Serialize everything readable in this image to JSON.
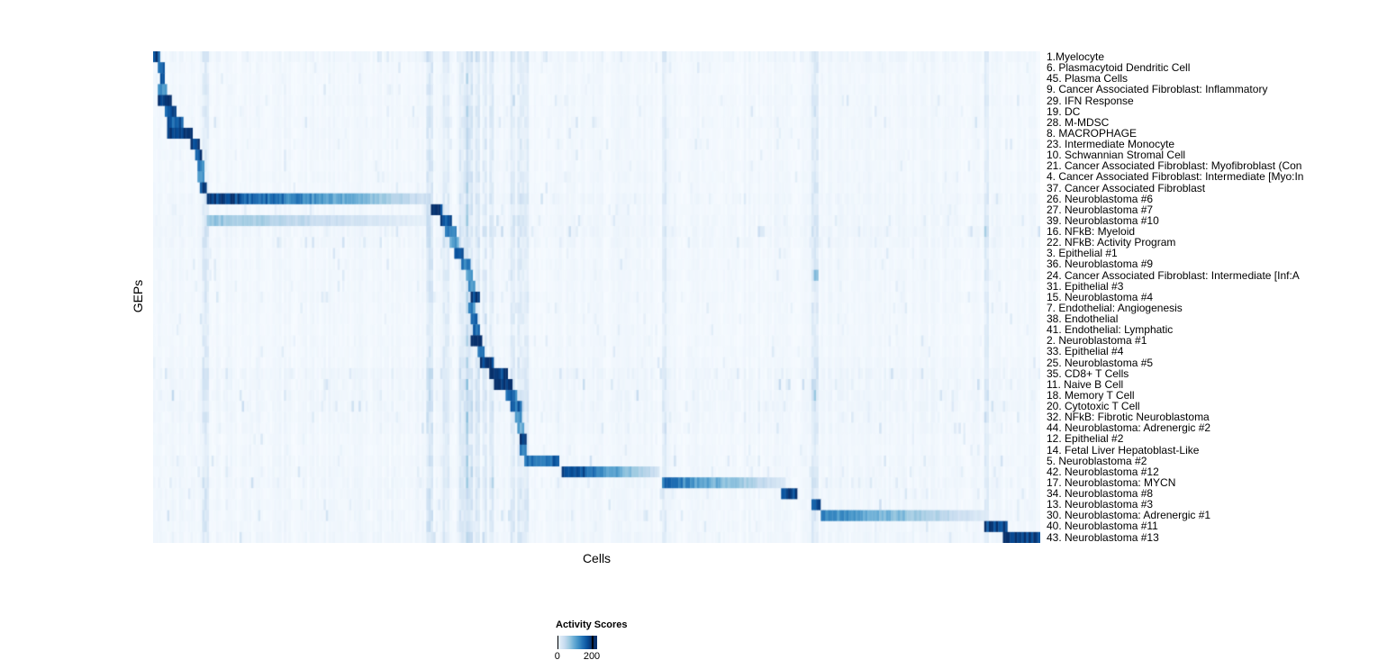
{
  "chart_data": {
    "type": "heatmap",
    "title": "",
    "xlabel": "Cells",
    "ylabel": "GEPs",
    "value_range": [
      0,
      200
    ],
    "colormap": {
      "name": "Blues",
      "stops": [
        "#f7fbff",
        "#deebf7",
        "#c6dbef",
        "#9ecae1",
        "#6baed6",
        "#4292c6",
        "#2171b5",
        "#08519c",
        "#08306b"
      ]
    },
    "colorbar": {
      "title": "Activity Scores",
      "tick_labels": [
        "0",
        "200"
      ],
      "tick_positions": [
        0.04,
        0.87
      ]
    },
    "n_columns": 380,
    "rows": [
      {
        "label": "1.Myelocyte",
        "noise": 0.5,
        "segments": [
          [
            0.0,
            0.009,
            190,
            0
          ]
        ]
      },
      {
        "label": "6. Plasmacytoid Dendritic Cell",
        "noise": 0.3,
        "segments": [
          [
            0.004,
            0.012,
            175,
            0
          ]
        ]
      },
      {
        "label": "45. Plasma Cells",
        "noise": 0.25,
        "segments": [
          [
            0.007,
            0.013,
            160,
            0
          ]
        ]
      },
      {
        "label": "9. Cancer Associated Fibroblast: Inflammatory",
        "noise": 0.3,
        "segments": [
          [
            0.005,
            0.016,
            120,
            0
          ]
        ]
      },
      {
        "label": "29. IFN Response",
        "noise": 0.35,
        "segments": [
          [
            0.006,
            0.021,
            195,
            0
          ]
        ]
      },
      {
        "label": "19. DC",
        "noise": 0.3,
        "segments": [
          [
            0.013,
            0.026,
            180,
            0
          ]
        ]
      },
      {
        "label": "28. M-MDSC",
        "noise": 0.35,
        "segments": [
          [
            0.016,
            0.033,
            175,
            0
          ]
        ]
      },
      {
        "label": "8. MACROPHAGE",
        "noise": 0.3,
        "segments": [
          [
            0.015,
            0.044,
            205,
            0
          ]
        ]
      },
      {
        "label": "23. Intermediate Monocyte",
        "noise": 0.3,
        "segments": [
          [
            0.042,
            0.052,
            195,
            0
          ]
        ]
      },
      {
        "label": "10. Schwannian Stromal Cell",
        "noise": 0.3,
        "segments": [
          [
            0.048,
            0.055,
            185,
            0
          ]
        ]
      },
      {
        "label": "21. Cancer Associated Fibroblast: Myofibroblast (Con",
        "noise": 0.3,
        "segments": [
          [
            0.05,
            0.058,
            140,
            0
          ]
        ]
      },
      {
        "label": "4. Cancer Associated Fibroblast: Intermediate [Myo:In",
        "noise": 0.35,
        "segments": [
          [
            0.051,
            0.059,
            130,
            0
          ]
        ]
      },
      {
        "label": "37. Cancer Associated Fibroblast",
        "noise": 0.3,
        "segments": [
          [
            0.052,
            0.061,
            190,
            0
          ]
        ]
      },
      {
        "label": "26. Neuroblastoma #6",
        "noise": 0.45,
        "segments": [
          [
            0.06,
            0.315,
            205,
            1
          ]
        ]
      },
      {
        "label": "27. Neuroblastoma #7",
        "noise": 0.35,
        "segments": [
          [
            0.312,
            0.327,
            205,
            0
          ]
        ]
      },
      {
        "label": "39. Neuroblastoma #10",
        "noise": 0.45,
        "segments": [
          [
            0.06,
            0.315,
            85,
            1
          ],
          [
            0.324,
            0.337,
            190,
            0
          ]
        ]
      },
      {
        "label": "16. NFkB: Myeloid",
        "noise": 0.5,
        "segments": [
          [
            0.329,
            0.341,
            150,
            0
          ]
        ]
      },
      {
        "label": "22. NFkB: Activity Program",
        "noise": 0.45,
        "segments": [
          [
            0.333,
            0.345,
            120,
            0
          ]
        ]
      },
      {
        "label": "3. Epithelial #1",
        "noise": 0.3,
        "segments": [
          [
            0.34,
            0.351,
            190,
            0
          ]
        ]
      },
      {
        "label": "36. Neuroblastoma #9",
        "noise": 0.35,
        "segments": [
          [
            0.347,
            0.357,
            140,
            0
          ]
        ]
      },
      {
        "label": "24. Cancer Associated Fibroblast: Intermediate [Inf:A",
        "noise": 0.35,
        "segments": [
          [
            0.352,
            0.36,
            110,
            0
          ],
          [
            0.744,
            0.751,
            90,
            0
          ]
        ]
      },
      {
        "label": "31. Epithelial #3",
        "noise": 0.3,
        "segments": [
          [
            0.354,
            0.362,
            130,
            0
          ]
        ]
      },
      {
        "label": "15. Neuroblastoma #4",
        "noise": 0.35,
        "segments": [
          [
            0.357,
            0.369,
            205,
            0
          ]
        ]
      },
      {
        "label": "7. Endothelial: Angiogenesis",
        "noise": 0.3,
        "segments": [
          [
            0.355,
            0.363,
            140,
            0
          ]
        ]
      },
      {
        "label": "38. Endothelial",
        "noise": 0.3,
        "segments": [
          [
            0.358,
            0.366,
            180,
            0
          ]
        ]
      },
      {
        "label": "41. Endothelial: Lymphatic",
        "noise": 0.25,
        "segments": [
          [
            0.361,
            0.368,
            155,
            0
          ]
        ]
      },
      {
        "label": "2. Neuroblastoma #1",
        "noise": 0.3,
        "segments": [
          [
            0.357,
            0.37,
            205,
            0
          ]
        ]
      },
      {
        "label": "33. Epithelial #4",
        "noise": 0.3,
        "segments": [
          [
            0.366,
            0.374,
            150,
            0
          ]
        ]
      },
      {
        "label": "25. Neuroblastoma #5",
        "noise": 0.35,
        "segments": [
          [
            0.369,
            0.384,
            205,
            0
          ]
        ]
      },
      {
        "label": "35. CD8+ T Cells",
        "noise": 0.55,
        "segments": [
          [
            0.379,
            0.399,
            205,
            0
          ]
        ]
      },
      {
        "label": "11. Naive B Cell",
        "noise": 0.5,
        "segments": [
          [
            0.384,
            0.406,
            205,
            0
          ]
        ]
      },
      {
        "label": "18. Memory T Cell",
        "noise": 0.5,
        "segments": [
          [
            0.397,
            0.41,
            150,
            0
          ]
        ]
      },
      {
        "label": "20. Cytotoxic T Cell",
        "noise": 0.5,
        "segments": [
          [
            0.403,
            0.415,
            160,
            0
          ]
        ]
      },
      {
        "label": "32. NFkB: Fibrotic Neuroblastoma",
        "noise": 0.45,
        "segments": [
          [
            0.407,
            0.417,
            140,
            0
          ]
        ]
      },
      {
        "label": "44. Neuroblastoma: Adrenergic #2",
        "noise": 0.4,
        "segments": [
          [
            0.41,
            0.418,
            110,
            0
          ]
        ]
      },
      {
        "label": "12. Epithelial #2",
        "noise": 0.3,
        "segments": [
          [
            0.412,
            0.42,
            185,
            0
          ]
        ]
      },
      {
        "label": "14. Fetal Liver Hepatoblast-Like",
        "noise": 0.3,
        "segments": [
          [
            0.414,
            0.421,
            140,
            0
          ]
        ]
      },
      {
        "label": "5. Neuroblastoma #2",
        "noise": 0.4,
        "segments": [
          [
            0.418,
            0.459,
            160,
            0
          ]
        ]
      },
      {
        "label": "42. Neuroblastoma #12",
        "noise": 0.4,
        "segments": [
          [
            0.461,
            0.57,
            205,
            1
          ]
        ]
      },
      {
        "label": "17. Neuroblastoma: MYCN",
        "noise": 0.45,
        "segments": [
          [
            0.575,
            0.713,
            155,
            1
          ]
        ]
      },
      {
        "label": "34. Neuroblastoma #8",
        "noise": 0.4,
        "segments": [
          [
            0.709,
            0.727,
            190,
            0
          ]
        ]
      },
      {
        "label": "13. Neuroblastoma #3",
        "noise": 0.4,
        "segments": [
          [
            0.743,
            0.753,
            185,
            0
          ]
        ]
      },
      {
        "label": "30. Neuroblastoma: Adrenergic #1",
        "noise": 0.45,
        "segments": [
          [
            0.753,
            0.941,
            145,
            1
          ]
        ]
      },
      {
        "label": "40. Neuroblastoma #11",
        "noise": 0.4,
        "segments": [
          [
            0.937,
            0.963,
            190,
            0
          ]
        ]
      },
      {
        "label": "43. Neuroblastoma #13",
        "noise": 0.45,
        "segments": [
          [
            0.959,
            1.0,
            205,
            0
          ]
        ]
      }
    ],
    "column_streaks": [
      [
        0.06,
        0.004,
        45
      ],
      [
        0.312,
        0.004,
        55
      ],
      [
        0.33,
        0.003,
        35
      ],
      [
        0.35,
        0.004,
        40
      ],
      [
        0.357,
        0.004,
        60
      ],
      [
        0.365,
        0.003,
        45
      ],
      [
        0.373,
        0.003,
        40
      ],
      [
        0.382,
        0.003,
        40
      ],
      [
        0.405,
        0.003,
        40
      ],
      [
        0.414,
        0.003,
        45
      ],
      [
        0.42,
        0.003,
        35
      ],
      [
        0.576,
        0.003,
        35
      ],
      [
        0.745,
        0.004,
        50
      ],
      [
        0.94,
        0.003,
        40
      ]
    ]
  }
}
